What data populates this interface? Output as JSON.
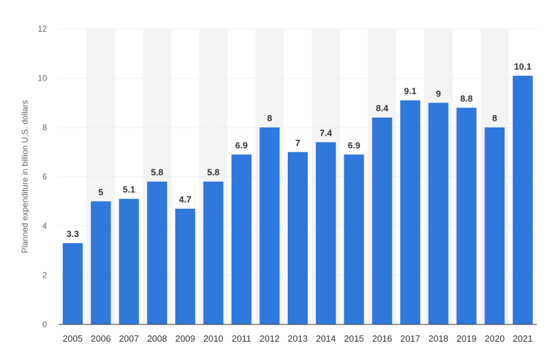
{
  "colors": {
    "bar": "#2f78dc",
    "band": "#f4f4f4",
    "grid": "#e6e6e6",
    "axis": "#333333"
  },
  "chart_data": {
    "type": "bar",
    "title": "",
    "xlabel": "",
    "ylabel": "Planned expenditure in billion U.S. dollars",
    "ylim": [
      0,
      12
    ],
    "yticks": [
      0,
      2,
      4,
      6,
      8,
      10,
      12
    ],
    "grid": true,
    "categories": [
      "2005",
      "2006",
      "2007",
      "2008",
      "2009",
      "2010",
      "2011",
      "2012",
      "2013",
      "2014",
      "2015",
      "2016",
      "2017",
      "2018",
      "2019",
      "2020",
      "2021"
    ],
    "values": [
      3.3,
      5,
      5.1,
      5.8,
      4.7,
      5.8,
      6.9,
      8,
      7,
      7.4,
      6.9,
      8.4,
      9.1,
      9,
      8.8,
      8,
      10.1
    ],
    "data_labels": [
      "3.3",
      "5",
      "5.1",
      "5.8",
      "4.7",
      "5.8",
      "6.9",
      "8",
      "7",
      "7.4",
      "6.9",
      "8.4",
      "9.1",
      "9",
      "8.8",
      "8",
      "10.1"
    ]
  }
}
